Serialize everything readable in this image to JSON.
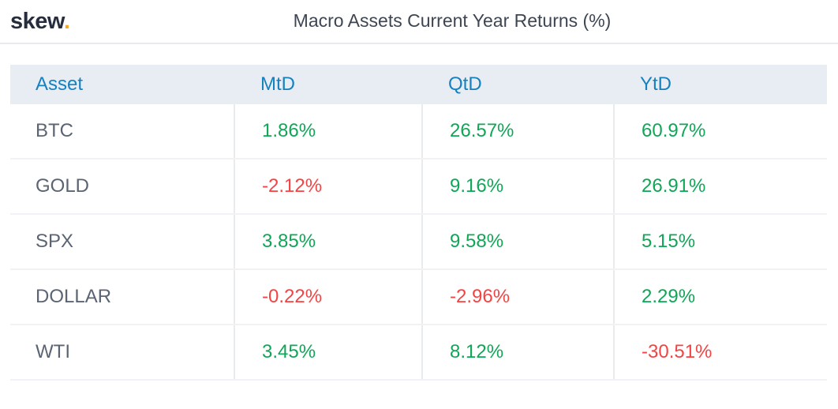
{
  "brand": {
    "name": "skew",
    "dot": "."
  },
  "colors": {
    "accent_dot": "#f7a823",
    "positive": "#10a657",
    "negative": "#f54343",
    "header_text": "#1581bf",
    "header_bg": "#e8edf4",
    "asset_text": "#5b6472",
    "title_text": "#3e4654"
  },
  "chart_data": {
    "type": "table",
    "title": "Macro Assets Current Year Returns (%)",
    "columns": [
      "Asset",
      "MtD",
      "QtD",
      "YtD"
    ],
    "rows": [
      {
        "asset": "BTC",
        "values": [
          {
            "text": "1.86%",
            "sign": "pos"
          },
          {
            "text": "26.57%",
            "sign": "pos"
          },
          {
            "text": "60.97%",
            "sign": "pos"
          }
        ]
      },
      {
        "asset": "GOLD",
        "values": [
          {
            "text": "-2.12%",
            "sign": "neg"
          },
          {
            "text": "9.16%",
            "sign": "pos"
          },
          {
            "text": "26.91%",
            "sign": "pos"
          }
        ]
      },
      {
        "asset": "SPX",
        "values": [
          {
            "text": "3.85%",
            "sign": "pos"
          },
          {
            "text": "9.58%",
            "sign": "pos"
          },
          {
            "text": "5.15%",
            "sign": "pos"
          }
        ]
      },
      {
        "asset": "DOLLAR",
        "values": [
          {
            "text": "-0.22%",
            "sign": "neg"
          },
          {
            "text": "-2.96%",
            "sign": "neg"
          },
          {
            "text": "2.29%",
            "sign": "pos"
          }
        ]
      },
      {
        "asset": "WTI",
        "values": [
          {
            "text": "3.45%",
            "sign": "pos"
          },
          {
            "text": "8.12%",
            "sign": "pos"
          },
          {
            "text": "-30.51%",
            "sign": "neg"
          }
        ]
      }
    ],
    "numeric": {
      "MtD": [
        1.86,
        -2.12,
        3.85,
        -0.22,
        3.45
      ],
      "QtD": [
        26.57,
        9.16,
        9.58,
        -2.96,
        8.12
      ],
      "YtD": [
        60.97,
        26.91,
        5.15,
        2.29,
        -30.51
      ]
    },
    "legend_position": "none",
    "grid": "row-separators"
  }
}
